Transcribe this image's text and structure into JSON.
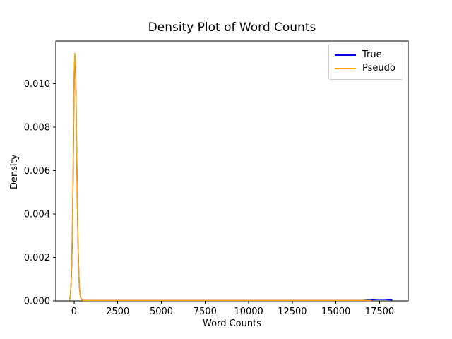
{
  "chart_data": {
    "type": "line",
    "title": "Density Plot of Word Counts",
    "xlabel": "Word Counts",
    "ylabel": "Density",
    "xlim": [
      -1050,
      19140
    ],
    "ylim": [
      0,
      0.011967
    ],
    "x_tick_values": [
      0,
      2500,
      5000,
      7500,
      10000,
      12500,
      15000,
      17500
    ],
    "x_tick_labels": [
      "0",
      "2500",
      "5000",
      "7500",
      "10000",
      "12500",
      "15000",
      "17500"
    ],
    "y_tick_values": [
      0.0,
      0.002,
      0.004,
      0.006,
      0.008,
      0.01
    ],
    "y_tick_labels": [
      "0.000",
      "0.002",
      "0.004",
      "0.006",
      "0.008",
      "0.010"
    ],
    "grid": false,
    "legend_position": "upper right",
    "series": [
      {
        "name": "True",
        "color": "#0000e8",
        "points": [
          [
            -260,
            2e-05
          ],
          [
            -220,
            0.0002
          ],
          [
            -180,
            0.0007
          ],
          [
            -140,
            0.0016
          ],
          [
            -100,
            0.0031
          ],
          [
            -60,
            0.0056
          ],
          [
            -20,
            0.0087
          ],
          [
            10,
            0.0106
          ],
          [
            45,
            0.0113
          ],
          [
            80,
            0.0107
          ],
          [
            110,
            0.0094
          ],
          [
            150,
            0.0067
          ],
          [
            190,
            0.0043
          ],
          [
            230,
            0.0024
          ],
          [
            270,
            0.0012
          ],
          [
            310,
            0.00055
          ],
          [
            360,
            0.0002
          ],
          [
            420,
            7e-05
          ],
          [
            500,
            3e-05
          ],
          [
            700,
            2e-05
          ],
          [
            2000,
            2e-05
          ],
          [
            5000,
            2e-05
          ],
          [
            9000,
            2e-05
          ],
          [
            13000,
            2e-05
          ],
          [
            16000,
            2e-05
          ],
          [
            16600,
            3e-05
          ],
          [
            17000,
            5e-05
          ],
          [
            17400,
            7e-05
          ],
          [
            17800,
            7e-05
          ],
          [
            18100,
            5e-05
          ],
          [
            18230,
            4e-05
          ]
        ]
      },
      {
        "name": "Pseudo",
        "color": "#ffa500",
        "points": [
          [
            -260,
            2e-05
          ],
          [
            -220,
            0.00022
          ],
          [
            -180,
            0.00075
          ],
          [
            -140,
            0.0017
          ],
          [
            -100,
            0.0032
          ],
          [
            -60,
            0.0058
          ],
          [
            -20,
            0.0089
          ],
          [
            10,
            0.0107
          ],
          [
            45,
            0.0114
          ],
          [
            80,
            0.0108
          ],
          [
            110,
            0.0095
          ],
          [
            150,
            0.0068
          ],
          [
            190,
            0.0044
          ],
          [
            230,
            0.0024
          ],
          [
            270,
            0.0012
          ],
          [
            310,
            0.00055
          ],
          [
            360,
            0.0002
          ],
          [
            420,
            6e-05
          ],
          [
            500,
            2e-05
          ],
          [
            700,
            2e-05
          ],
          [
            2000,
            2e-05
          ],
          [
            5000,
            2e-05
          ],
          [
            9000,
            2e-05
          ],
          [
            12000,
            2e-05
          ],
          [
            15000,
            2e-05
          ],
          [
            16500,
            2e-05
          ],
          [
            17030,
            2e-05
          ]
        ]
      }
    ],
    "colors": {
      "spine": "#000000",
      "tick": "#000000",
      "legend_border": "#cccccc",
      "background": "#ffffff"
    }
  }
}
